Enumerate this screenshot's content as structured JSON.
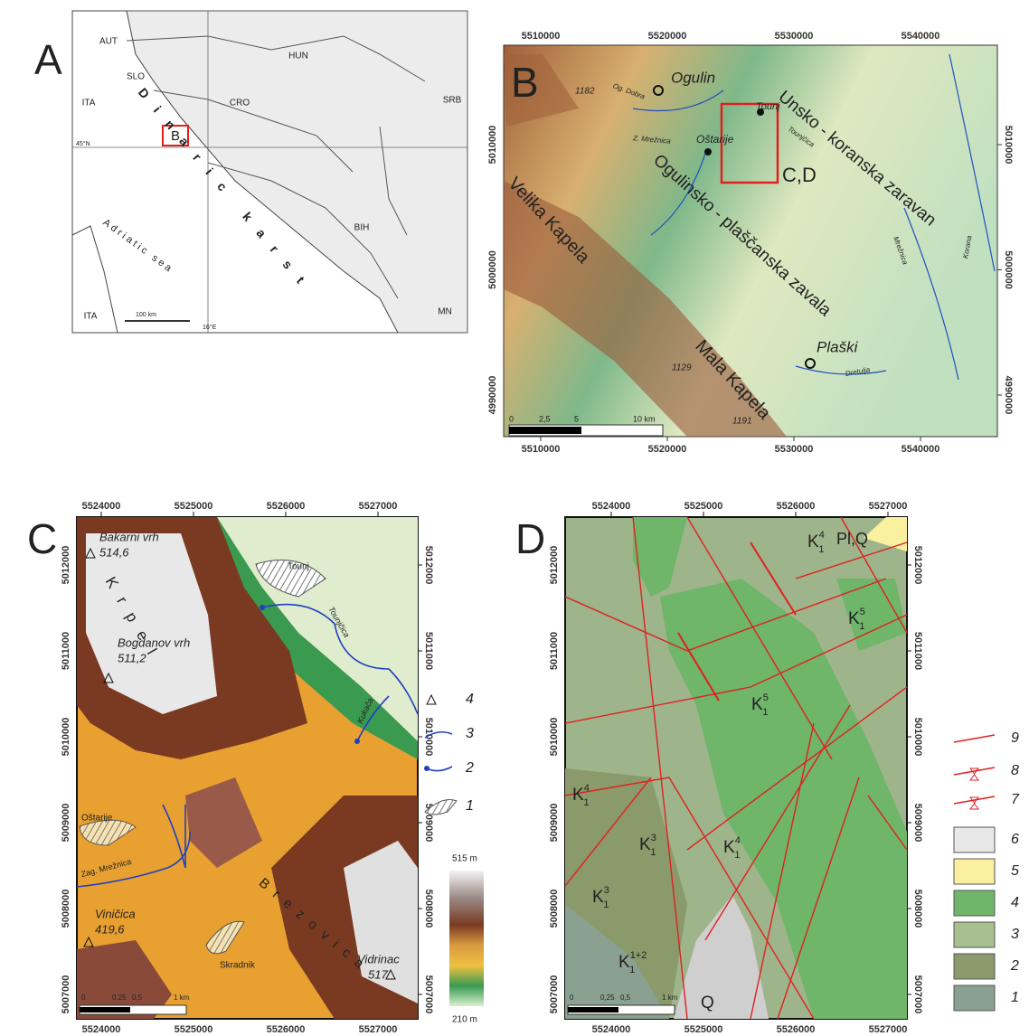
{
  "panel_a": {
    "letter": "A",
    "countries": [
      "AUT",
      "SLO",
      "HUN",
      "ITA",
      "CRO",
      "SRB",
      "BIH",
      "ITA",
      "MN"
    ],
    "inset_box": "B",
    "latitude": "45°N",
    "longitude": "16°E",
    "sea": "Adriatic sea",
    "karst": "Dinaric karst",
    "scale": "100 km"
  },
  "panel_b": {
    "letter": "B",
    "x_ticks": [
      5510000,
      5520000,
      5530000,
      5540000
    ],
    "y_ticks": [
      5010000,
      5000000,
      4990000
    ],
    "towns": [
      "Ogulin",
      "Tounj",
      "Oštarije",
      "Plaški"
    ],
    "peaks": [
      "1182",
      "1129",
      "1191"
    ],
    "regions": [
      "Velika Kapela",
      "Mala Kapela",
      "Ogulinsko - plaščanska zavala",
      "Unsko - koranska zaravan"
    ],
    "rivers": [
      "Og. Dobra",
      "Z. Mrežnica",
      "Tounjčica",
      "Dretulja",
      "Mrežnica",
      "Korana"
    ],
    "detail_box": "C,D",
    "scale": [
      "0",
      "2,5",
      "5",
      "10 km"
    ]
  },
  "panel_c": {
    "letter": "C",
    "x_ticks": [
      5524000,
      5525000,
      5526000,
      5527000
    ],
    "y_ticks": [
      5012000,
      5011000,
      5010000,
      5009000,
      5008000,
      5007000
    ],
    "peaks": [
      {
        "name": "Bakarni vrh",
        "elevation": "514,6"
      },
      {
        "name": "Bogdanov vrh",
        "elevation": "511,2"
      },
      {
        "name": "Viničica",
        "elevation": "419,6"
      },
      {
        "name": "Vidrinac",
        "elevation": "517"
      }
    ],
    "settlements": [
      "Tounj",
      "Oštarije",
      "Skradnik"
    ],
    "rivers": [
      "Tounjčica",
      "Kukača",
      "Zag. Mrežnica"
    ],
    "ridges": [
      "Krpel",
      "Brezovica"
    ],
    "scale": [
      "0",
      "0,25",
      "0,5",
      "1 km"
    ],
    "legend": [
      "4",
      "3",
      "2",
      "1"
    ],
    "elevation_max": "515 m",
    "elevation_min": "210 m"
  },
  "panel_d": {
    "letter": "D",
    "x_ticks": [
      5524000,
      5525000,
      5526000,
      5527000
    ],
    "y_ticks": [
      5012000,
      5011000,
      5010000,
      5009000,
      5008000,
      5007000
    ],
    "units": [
      {
        "base": "K",
        "sub": "1",
        "sup": "4"
      },
      {
        "base": "K",
        "sub": "1",
        "sup": "5"
      },
      {
        "base": "K",
        "sub": "1",
        "sup": "5"
      },
      {
        "base": "K",
        "sub": "1",
        "sup": "4"
      },
      {
        "base": "K",
        "sub": "1",
        "sup": "3"
      },
      {
        "base": "K",
        "sub": "1",
        "sup": "4"
      },
      {
        "base": "K",
        "sub": "1",
        "sup": "3"
      },
      {
        "base": "K",
        "sub": "1",
        "sup": "1+2"
      }
    ],
    "other_units": [
      "Pl,Q",
      "Q"
    ],
    "scale": [
      "0",
      "0,25",
      "0,5",
      "1 km"
    ],
    "legend": [
      "9",
      "8",
      "7",
      "6",
      "5",
      "4",
      "3",
      "2",
      "1"
    ]
  }
}
